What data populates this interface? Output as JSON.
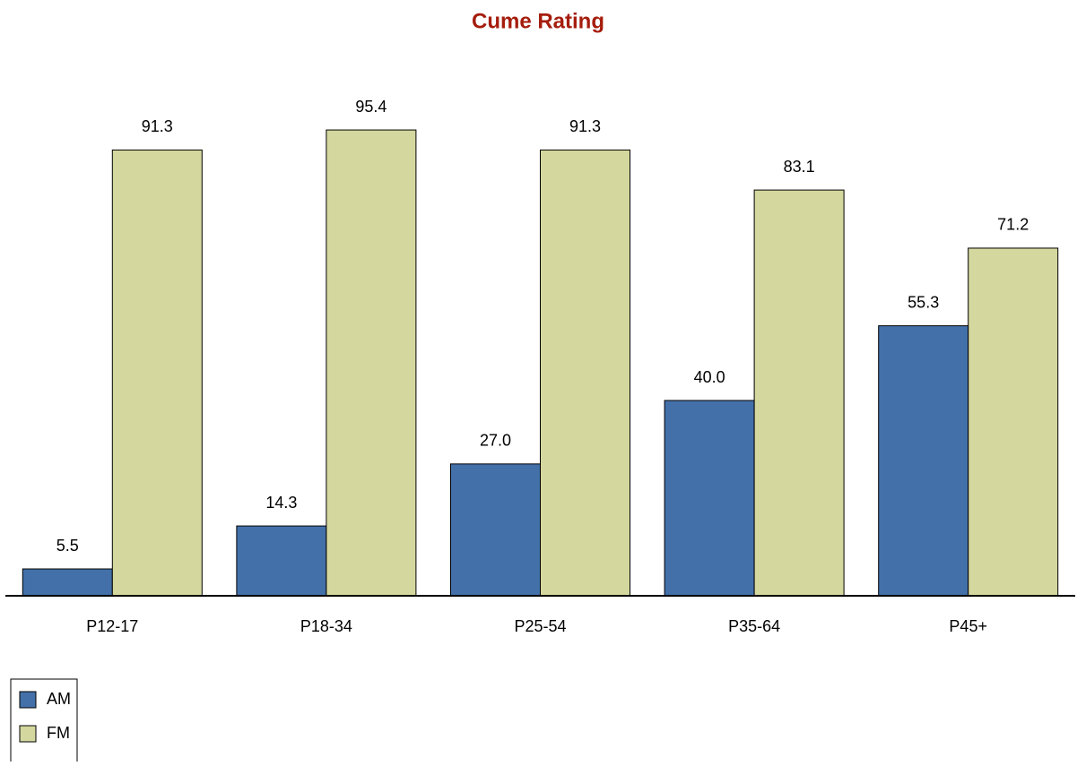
{
  "chart_data": {
    "type": "bar",
    "title": "Cume Rating",
    "categories": [
      "P12-17",
      "P18-34",
      "P25-54",
      "P35-64",
      "P45+"
    ],
    "series": [
      {
        "name": "AM",
        "color": "#4370a9",
        "values": [
          5.5,
          14.3,
          27.0,
          40.0,
          55.3
        ],
        "value_labels": [
          "5.5",
          "14.3",
          "27.0",
          "40.0",
          "55.3"
        ]
      },
      {
        "name": "FM",
        "color": "#d5d89e",
        "values": [
          91.3,
          95.4,
          91.3,
          83.1,
          71.2
        ],
        "value_labels": [
          "91.3",
          "95.4",
          "91.3",
          "83.1",
          "71.2"
        ]
      }
    ],
    "ylim": [
      0,
      100
    ],
    "legend": "bottom-left"
  }
}
